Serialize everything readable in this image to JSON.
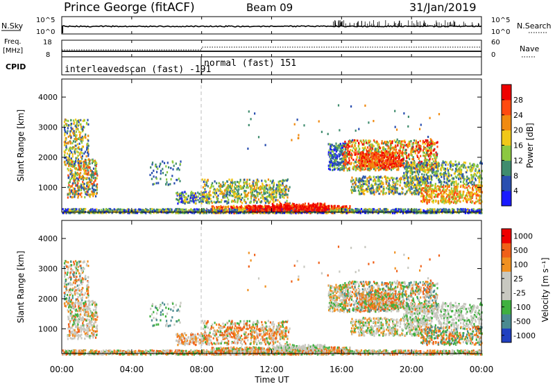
{
  "header": {
    "station": "Prince George (fitACF)",
    "beam": "Beam 09",
    "date": "31/Jan/2019"
  },
  "noise_panel": {
    "left_label": "N.Sky",
    "right_label": "N.Search",
    "left_ticks": [
      "10^5",
      "10^0"
    ],
    "right_ticks": [
      "10^5",
      "10^0"
    ]
  },
  "freq_panel": {
    "left_label_line1": "Freq.",
    "left_label_line2": "[MHz]",
    "right_label": "Nave",
    "left_ticks": [
      "18",
      "8"
    ],
    "right_ticks": [
      "60",
      "0"
    ]
  },
  "cpid_panel": {
    "label": "CPID",
    "mode1": "interleavedscan (fast) -191",
    "mode2": "normal (fast) 151"
  },
  "chart_data": [
    {
      "type": "heatmap",
      "name": "power",
      "ylabel": "Slant Range [km]",
      "yticks": [
        "1000",
        "2000",
        "3000",
        "4000"
      ],
      "ylim": [
        180,
        4600
      ],
      "xlim": [
        0,
        24
      ],
      "colorbar_label": "Power [dB]",
      "colorbar_ticks": [
        "4",
        "8",
        "12",
        "16",
        "20",
        "24",
        "28"
      ],
      "colorbar_colors": [
        "#1a1aff",
        "#2a4fb0",
        "#3f8c6e",
        "#8cc840",
        "#f0c818",
        "#f08a10",
        "#ff4a10",
        "#ee0000"
      ]
    },
    {
      "type": "heatmap",
      "name": "velocity",
      "ylabel": "Slant Range [km]",
      "yticks": [
        "1000",
        "2000",
        "3000",
        "4000"
      ],
      "ylim": [
        180,
        4600
      ],
      "xlim": [
        0,
        24
      ],
      "colorbar_label": "Velocity [m s⁻¹]",
      "colorbar_ticks": [
        "1000",
        "500",
        "100",
        "25",
        "-25",
        "-100",
        "-500",
        "-1000"
      ],
      "colorbar_colors": [
        "#2040c0",
        "#4a8a90",
        "#40b040",
        "#c8c8c0",
        "#c8c8c0",
        "#f09020",
        "#f06018",
        "#ee0000"
      ]
    }
  ],
  "xaxis": {
    "label": "Time UT",
    "ticks": [
      "00:00",
      "04:00",
      "08:00",
      "12:00",
      "16:00",
      "20:00",
      "00:00"
    ]
  }
}
